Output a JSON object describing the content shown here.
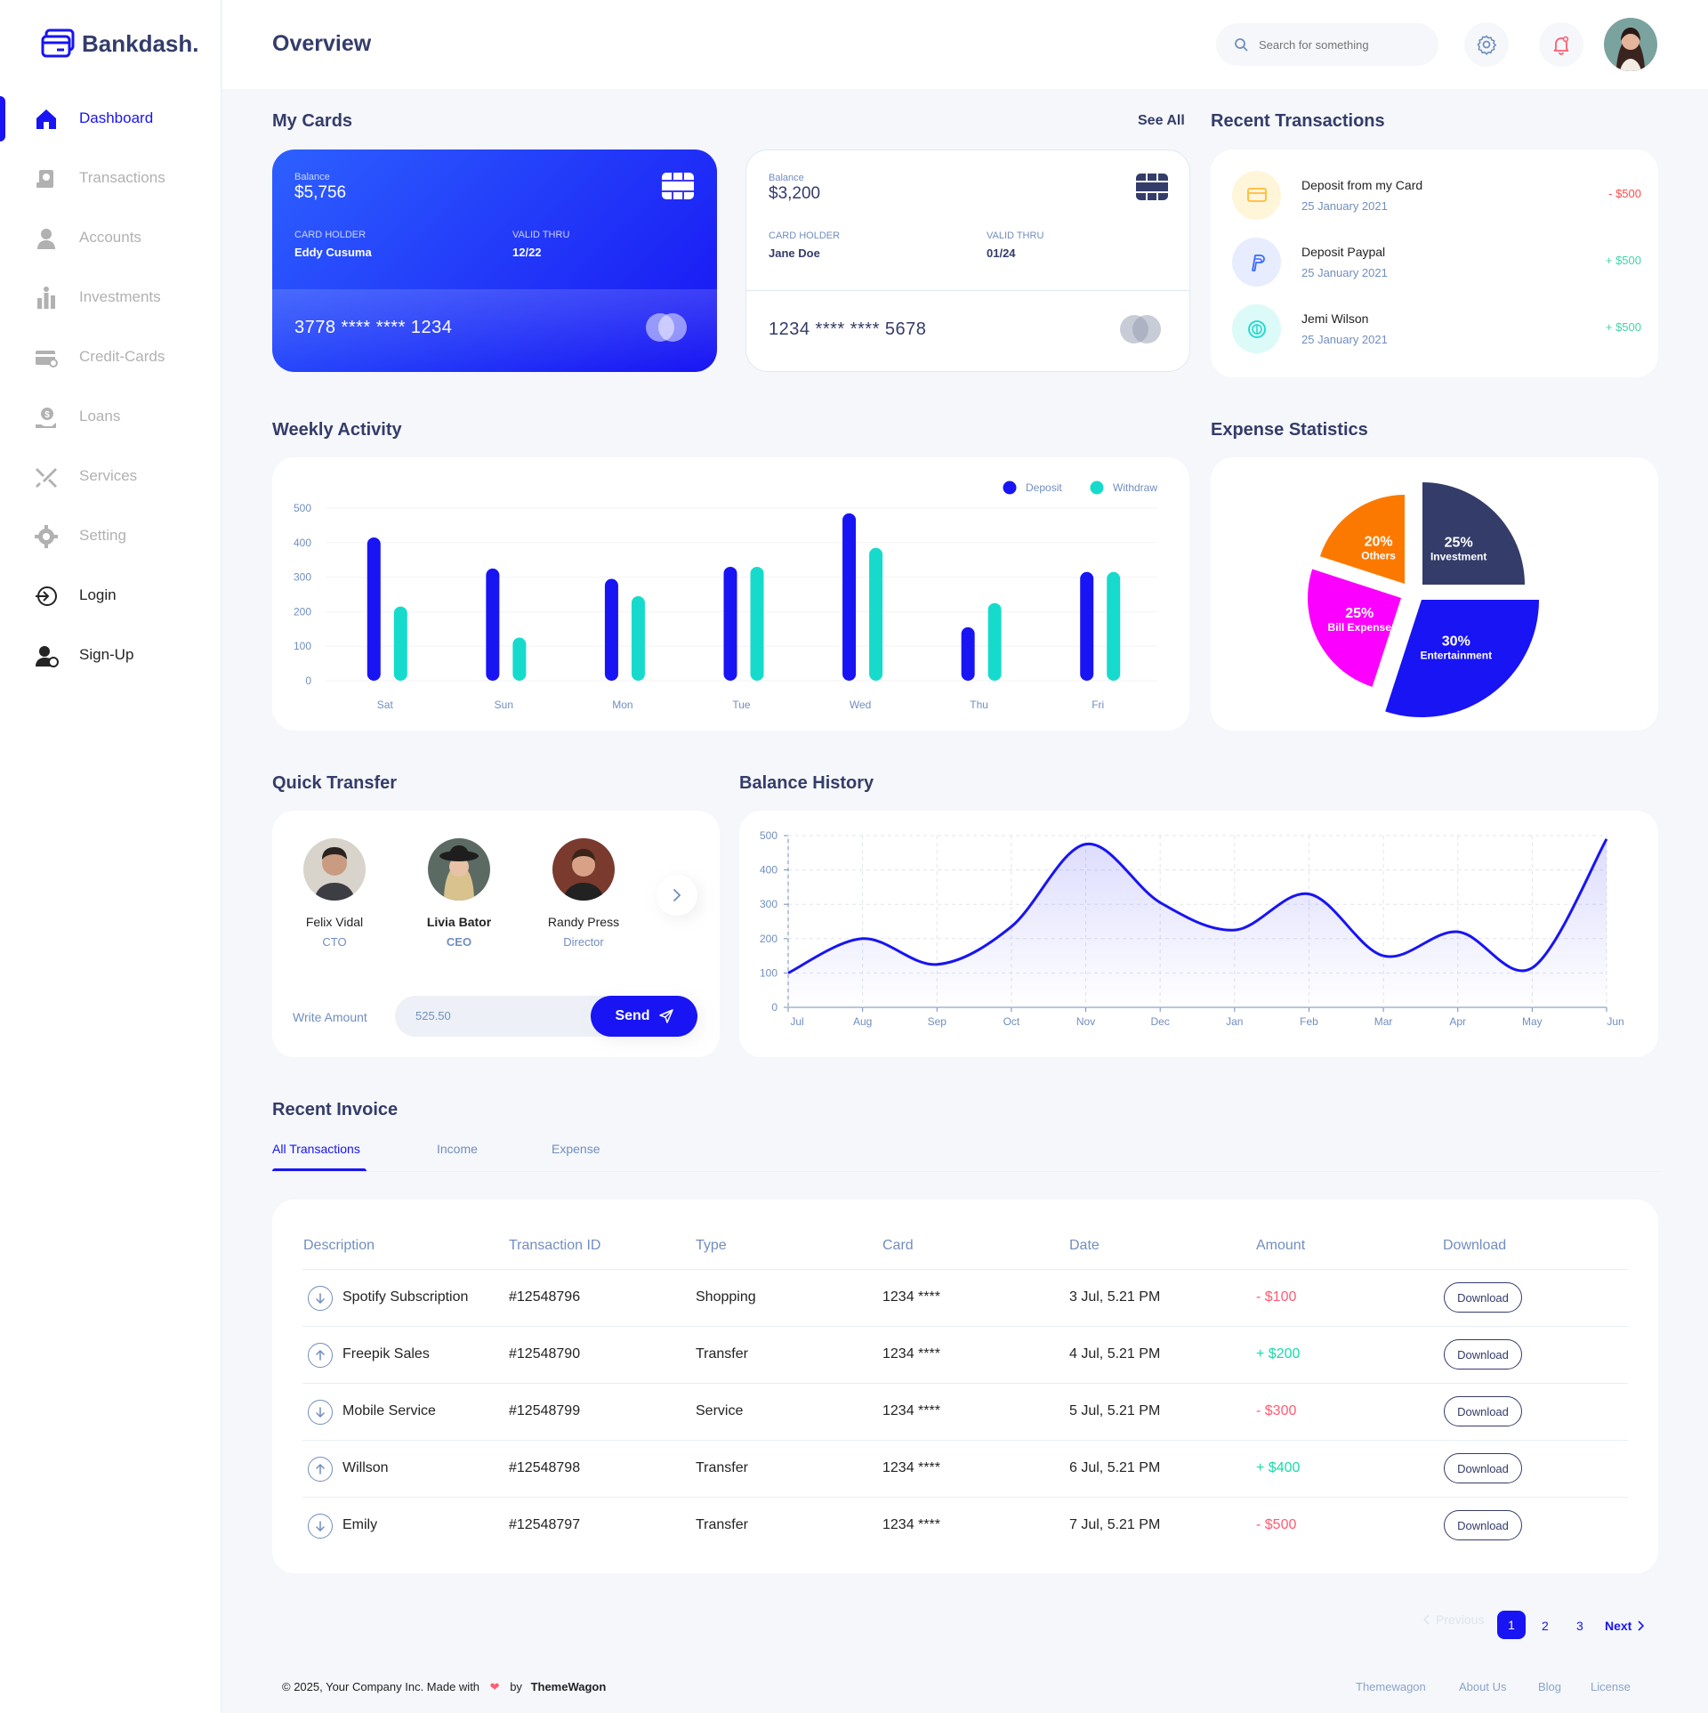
{
  "brand": {
    "name": "Bankdash."
  },
  "sidebar": {
    "items": [
      {
        "label": "Dashboard",
        "icon": "home-icon"
      },
      {
        "label": "Transactions",
        "icon": "transfer-icon"
      },
      {
        "label": "Accounts",
        "icon": "user-icon"
      },
      {
        "label": "Investments",
        "icon": "investment-icon"
      },
      {
        "label": "Credit-Cards",
        "icon": "credit-card-icon"
      },
      {
        "label": "Loans",
        "icon": "loan-icon"
      },
      {
        "label": "Services",
        "icon": "service-icon"
      },
      {
        "label": "Setting",
        "icon": "gear-icon"
      },
      {
        "label": "Login",
        "icon": "login-icon"
      },
      {
        "label": "Sign-Up",
        "icon": "signup-icon"
      }
    ]
  },
  "header": {
    "title": "Overview",
    "search_placeholder": "Search for something"
  },
  "my_cards": {
    "title": "My Cards",
    "see_all": "See All",
    "cards": [
      {
        "balance_label": "Balance",
        "balance": "$5,756",
        "holder_label": "CARD HOLDER",
        "holder": "Eddy Cusuma",
        "valid_label": "VALID THRU",
        "valid": "12/22",
        "number": "3778 **** **** 1234"
      },
      {
        "balance_label": "Balance",
        "balance": "$3,200",
        "holder_label": "CARD HOLDER",
        "holder": "Jane Doe",
        "valid_label": "VALID THRU",
        "valid": "01/24",
        "number": "1234 **** **** 5678"
      }
    ]
  },
  "recent_transactions": {
    "title": "Recent Transactions",
    "items": [
      {
        "title": "Deposit from my Card",
        "date": "25 January 2021",
        "amount": "- $500",
        "color": "#ff4b4a",
        "icon": "card-icon"
      },
      {
        "title": "Deposit Paypal",
        "date": "25 January 2021",
        "amount": "+ $500",
        "color": "#41d4a8",
        "icon": "paypal-icon"
      },
      {
        "title": "Jemi Wilson",
        "date": "25 January 2021",
        "amount": "+ $500",
        "color": "#41d4a8",
        "icon": "dollar-icon"
      }
    ]
  },
  "weekly_activity": {
    "title": "Weekly Activity"
  },
  "expense_statistics": {
    "title": "Expense Statistics"
  },
  "quick_transfer": {
    "title": "Quick Transfer",
    "people": [
      {
        "name": "Felix Vidal",
        "role": "CTO"
      },
      {
        "name": "Livia Bator",
        "role": "CEO"
      },
      {
        "name": "Randy Press",
        "role": "Director"
      }
    ],
    "amount_label": "Write Amount",
    "amount_value": "525.50",
    "send_label": "Send"
  },
  "balance_history": {
    "title": "Balance History"
  },
  "chart_data": [
    {
      "type": "bar",
      "categories": [
        "Sat",
        "Sun",
        "Mon",
        "Tue",
        "Wed",
        "Thu",
        "Fri"
      ],
      "series": [
        {
          "name": "Deposit",
          "color": "#1814f3",
          "values": [
            415,
            325,
            295,
            330,
            485,
            155,
            315
          ]
        },
        {
          "name": "Withdraw",
          "color": "#16dbcc",
          "values": [
            215,
            125,
            245,
            330,
            385,
            225,
            315
          ]
        }
      ],
      "ylim": [
        0,
        500
      ],
      "yticks": [
        0,
        100,
        200,
        300,
        400,
        500
      ],
      "legend": "top-right",
      "grid": true
    },
    {
      "type": "pie",
      "slices": [
        {
          "label": "Investment",
          "value": 25,
          "color": "#343c6a"
        },
        {
          "label": "Entertainment",
          "value": 30,
          "color": "#1814f3"
        },
        {
          "label": "Bill Expense",
          "value": 25,
          "color": "#fc00ff"
        },
        {
          "label": "Others",
          "value": 20,
          "color": "#fc7900"
        }
      ]
    },
    {
      "type": "area",
      "categories": [
        "Jul",
        "Aug",
        "Sep",
        "Oct",
        "Nov",
        "Dec",
        "Jan",
        "Feb",
        "Mar",
        "Apr",
        "May",
        "Jun"
      ],
      "values": [
        100,
        200,
        125,
        235,
        475,
        305,
        225,
        330,
        150,
        220,
        115,
        490
      ],
      "ylim": [
        0,
        500
      ],
      "yticks": [
        0,
        100,
        200,
        300,
        400,
        500
      ],
      "color": "#1814f3",
      "grid": true
    }
  ],
  "invoice": {
    "title": "Recent Invoice",
    "tabs": [
      "All Transactions",
      "Income",
      "Expense"
    ],
    "columns": [
      "Description",
      "Transaction ID",
      "Type",
      "Card",
      "Date",
      "Amount",
      "Download"
    ],
    "rows": [
      {
        "description": "Spotify Subscription",
        "id": "#12548796",
        "type": "Shopping",
        "card": "1234 ****",
        "date": "3 Jul, 5.21 PM",
        "amount": "- $100",
        "direction": "down",
        "color": "#fe5c73"
      },
      {
        "description": "Freepik Sales",
        "id": "#12548790",
        "type": "Transfer",
        "card": "1234 ****",
        "date": "4 Jul, 5.21 PM",
        "amount": "+ $200",
        "direction": "up",
        "color": "#16dbaa"
      },
      {
        "description": "Mobile Service",
        "id": "#12548799",
        "type": "Service",
        "card": "1234 ****",
        "date": "5 Jul, 5.21 PM",
        "amount": "- $300",
        "direction": "down",
        "color": "#fe5c73"
      },
      {
        "description": "Willson",
        "id": "#12548798",
        "type": "Transfer",
        "card": "1234 ****",
        "date": "6 Jul, 5.21 PM",
        "amount": "+ $400",
        "direction": "up",
        "color": "#16dbaa"
      },
      {
        "description": "Emily",
        "id": "#12548797",
        "type": "Transfer",
        "card": "1234 ****",
        "date": "7 Jul, 5.21 PM",
        "amount": "- $500",
        "direction": "down",
        "color": "#fe5c73"
      }
    ],
    "download_label": "Download"
  },
  "pagination": {
    "previous": "Previous",
    "pages": [
      "1",
      "2",
      "3"
    ],
    "next": "Next",
    "current": "1"
  },
  "footer": {
    "copyright": "© 2025, Your Company Inc.  Made with",
    "by": "by",
    "brand": "ThemeWagon",
    "links": [
      "Themewagon",
      "About Us",
      "Blog",
      "License"
    ]
  }
}
